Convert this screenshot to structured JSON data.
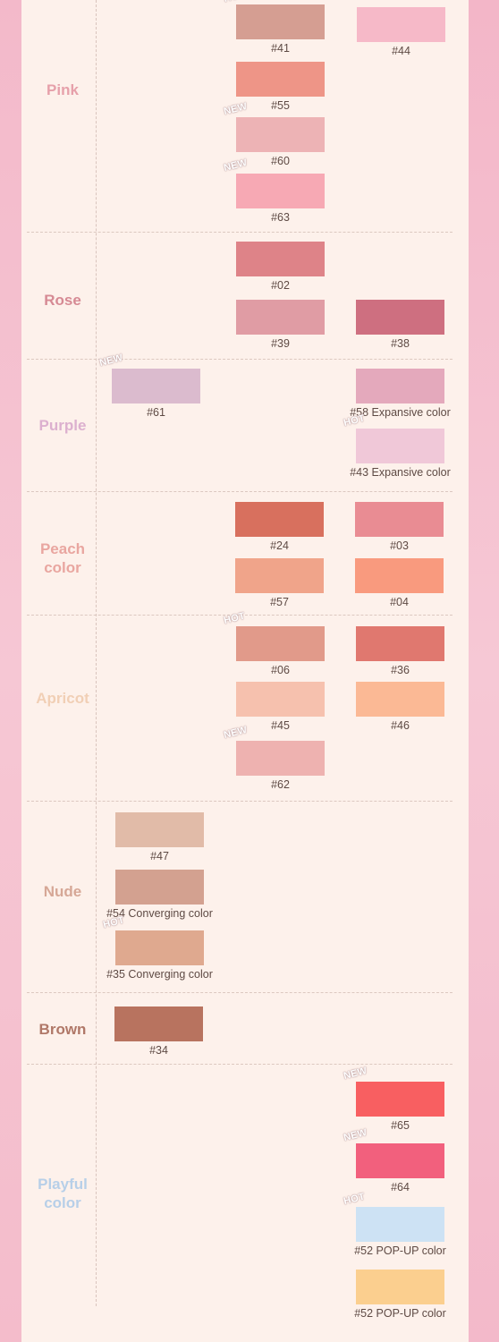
{
  "chart_data": {
    "type": "table",
    "categories": [
      {
        "name": "Pink",
        "color": "#e6a0aa"
      },
      {
        "name": "Rose",
        "color": "#d68a94"
      },
      {
        "name": "Purple",
        "color": "#dcb0cf"
      },
      {
        "name": "Peach\ncolor",
        "color": "#e9a6a0"
      },
      {
        "name": "Apricot",
        "color": "#f1cfb5"
      },
      {
        "name": "Nude",
        "color": "#d6a796"
      },
      {
        "name": "Brown",
        "color": "#b07868"
      },
      {
        "name": "Playful\ncolor",
        "color": "#b7cfe8"
      }
    ],
    "swatches": [
      {
        "category": "Pink",
        "column": 2,
        "label": "#41",
        "color": "#d59e92",
        "badge": "HOT"
      },
      {
        "category": "Pink",
        "column": 3,
        "label": "#44",
        "color": "#f6b9c8",
        "badge": ""
      },
      {
        "category": "Pink",
        "column": 2,
        "label": "#55",
        "color": "#ee9587",
        "badge": ""
      },
      {
        "category": "Pink",
        "column": 2,
        "label": "#60",
        "color": "#edb3b5",
        "badge": "NEW"
      },
      {
        "category": "Pink",
        "column": 2,
        "label": "#63",
        "color": "#f7a9b4",
        "badge": "NEW"
      },
      {
        "category": "Rose",
        "column": 2,
        "label": "#02",
        "color": "#de8388",
        "badge": ""
      },
      {
        "category": "Rose",
        "column": 2,
        "label": "#39",
        "color": "#e09ca4",
        "badge": ""
      },
      {
        "category": "Rose",
        "column": 3,
        "label": "#38",
        "color": "#ce6f80",
        "badge": ""
      },
      {
        "category": "Purple",
        "column": 1,
        "label": "#61",
        "color": "#dbbbce",
        "badge": "NEW"
      },
      {
        "category": "Purple",
        "column": 3,
        "label": "#58 Expansive color",
        "color": "#e4a9bc",
        "badge": ""
      },
      {
        "category": "Purple",
        "column": 3,
        "label": "#43 Expansive color",
        "color": "#f0c8d8",
        "badge": "HOT"
      },
      {
        "category": "Peach\ncolor",
        "column": 2,
        "label": "#24",
        "color": "#d8705e",
        "badge": ""
      },
      {
        "category": "Peach\ncolor",
        "column": 3,
        "label": "#03",
        "color": "#e98c93",
        "badge": ""
      },
      {
        "category": "Peach\ncolor",
        "column": 2,
        "label": "#57",
        "color": "#f0a48a",
        "badge": ""
      },
      {
        "category": "Peach\ncolor",
        "column": 3,
        "label": "#04",
        "color": "#f99a7e",
        "badge": ""
      },
      {
        "category": "Apricot",
        "column": 2,
        "label": "#06",
        "color": "#e19a8a",
        "badge": "HOT"
      },
      {
        "category": "Apricot",
        "column": 3,
        "label": "#36",
        "color": "#e0786f",
        "badge": ""
      },
      {
        "category": "Apricot",
        "column": 2,
        "label": "#45",
        "color": "#f6c1ae",
        "badge": ""
      },
      {
        "category": "Apricot",
        "column": 3,
        "label": "#46",
        "color": "#fbb995",
        "badge": ""
      },
      {
        "category": "Apricot",
        "column": 2,
        "label": "#62",
        "color": "#eeb2b0",
        "badge": "NEW"
      },
      {
        "category": "Nude",
        "column": 1,
        "label": "#47",
        "color": "#e1bba8",
        "badge": ""
      },
      {
        "category": "Nude",
        "column": 1,
        "label": "#54 Converging color",
        "color": "#d3a190",
        "badge": ""
      },
      {
        "category": "Nude",
        "column": 1,
        "label": "#35 Converging color",
        "color": "#dfa98f",
        "badge": "HOT"
      },
      {
        "category": "Brown",
        "column": 1,
        "label": "#34",
        "color": "#b8735f",
        "badge": ""
      },
      {
        "category": "Playful\ncolor",
        "column": 3,
        "label": "#65",
        "color": "#f85f61",
        "badge": "NEW"
      },
      {
        "category": "Playful\ncolor",
        "column": 3,
        "label": "#64",
        "color": "#f2607d",
        "badge": "NEW"
      },
      {
        "category": "Playful\ncolor",
        "column": 3,
        "label": "#52 POP-UP color",
        "color": "#cde2f4",
        "badge": "HOT"
      },
      {
        "category": "Playful\ncolor",
        "column": 3,
        "label": "#52 POP-UP color",
        "color": "#fbcf8f",
        "badge": ""
      }
    ]
  }
}
